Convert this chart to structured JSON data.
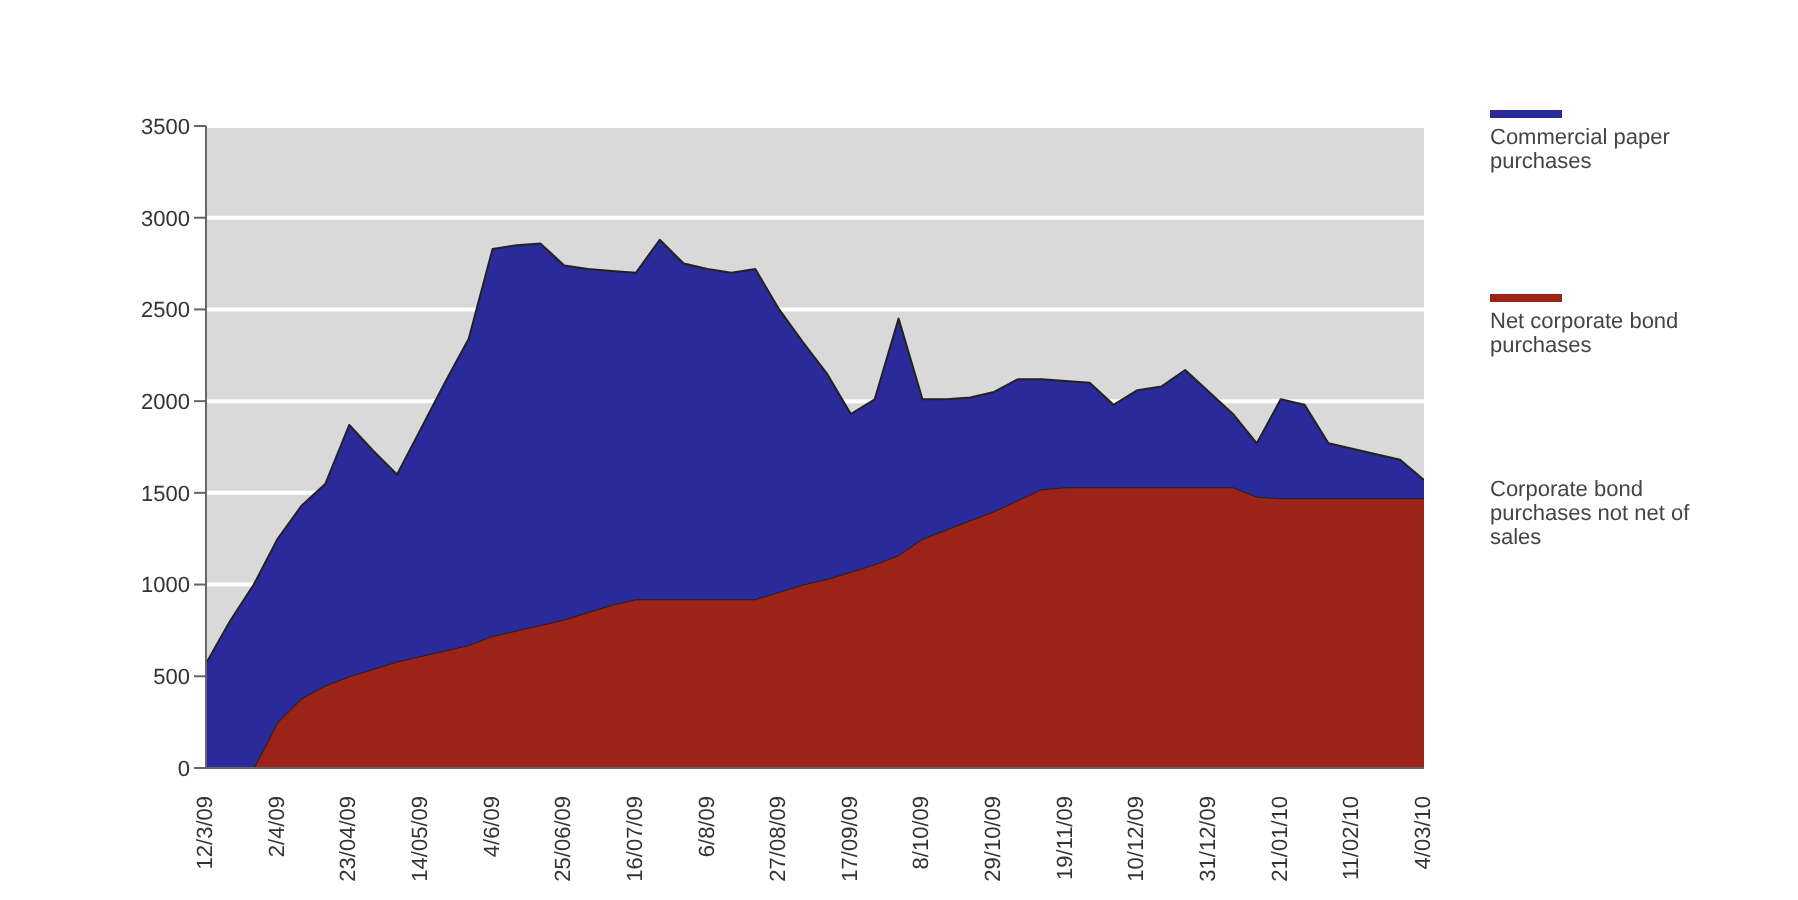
{
  "chart_data": {
    "type": "area",
    "stacked": true,
    "categories": [
      "12/3/09",
      null,
      null,
      "2/4/09",
      null,
      null,
      "23/04/09",
      null,
      null,
      "14/05/09",
      null,
      null,
      "4/6/09",
      null,
      null,
      "25/06/09",
      null,
      null,
      "16/07/09",
      null,
      null,
      "6/8/09",
      null,
      null,
      "27/08/09",
      null,
      null,
      "17/09/09",
      null,
      null,
      "8/10/09",
      null,
      null,
      "29/10/09",
      null,
      null,
      "19/11/09",
      null,
      null,
      "10/12/09",
      null,
      null,
      "31/12/09",
      null,
      null,
      "21/01/10",
      null,
      null,
      "11/02/10",
      null,
      null,
      "4/03/10"
    ],
    "series": [
      {
        "name": "Net corporate bond purchases",
        "color": "#9b2318",
        "values": [
          0,
          0,
          0,
          250,
          380,
          450,
          500,
          540,
          580,
          610,
          640,
          670,
          720,
          750,
          780,
          810,
          850,
          890,
          920,
          920,
          920,
          920,
          920,
          920,
          960,
          1000,
          1030,
          1070,
          1110,
          1160,
          1250,
          1300,
          1350,
          1400,
          1460,
          1520,
          1530,
          1530,
          1530,
          1530,
          1530,
          1530,
          1530,
          1530,
          1480,
          1470,
          1470,
          1470,
          1470,
          1470,
          1470,
          1470
        ]
      },
      {
        "name": "Commercial paper purchases",
        "color": "#2a2a9a",
        "values": [
          570,
          800,
          1000,
          1000,
          1050,
          1100,
          1370,
          1190,
          1020,
          1240,
          1460,
          1670,
          2110,
          2100,
          2080,
          1930,
          1870,
          1820,
          1780,
          1960,
          1830,
          1800,
          1780,
          1800,
          1540,
          1320,
          1120,
          860,
          900,
          1290,
          760,
          710,
          670,
          650,
          660,
          600,
          580,
          570,
          450,
          530,
          550,
          640,
          520,
          400,
          290,
          540,
          510,
          300,
          270,
          240,
          210,
          100
        ]
      }
    ],
    "ylim": [
      0,
      3500
    ],
    "yticks": [
      0,
      500,
      1000,
      1500,
      2000,
      2500,
      3000,
      3500
    ],
    "grid": "y",
    "legend": "right",
    "annotations": [
      "Corporate bond purchases not net of sales"
    ]
  }
}
